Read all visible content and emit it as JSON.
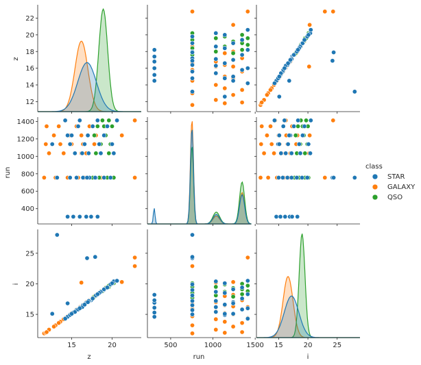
{
  "chart_data": {
    "type": "scatter",
    "kind": "pairplot",
    "variables": [
      "z",
      "run",
      "i"
    ],
    "diag_kind": "kde",
    "ranges": {
      "z": [
        10.8,
        23.6
      ],
      "run": [
        225,
        1450
      ],
      "i": [
        11.2,
        28.9
      ]
    },
    "ticks": {
      "z": [
        15,
        20
      ],
      "z_diag": [
        12,
        14,
        16,
        18,
        20,
        22
      ],
      "run": [
        500,
        1000,
        1500
      ],
      "run_diag": [
        400,
        600,
        800,
        1000,
        1200,
        1400
      ],
      "i": [
        15,
        20,
        25
      ],
      "i_diag": [
        15,
        20,
        25
      ]
    },
    "legend": {
      "title": "class",
      "placement": "right",
      "entries": [
        {
          "label": "STAR",
          "color": "#1f77b4"
        },
        {
          "label": "GALAXY",
          "color": "#ff7f0e"
        },
        {
          "label": "QSO",
          "color": "#2ca02c"
        }
      ]
    },
    "series": [
      {
        "name": "STAR",
        "color": "#1f77b4",
        "kde": {
          "z": {
            "mean": 16.9,
            "sd": 1.15
          },
          "run": {
            "modes": [
              {
                "mu": 752,
                "sd": 18,
                "w": 0.55
              },
              {
                "mu": 1040,
                "sd": 40,
                "w": 0.12
              },
              {
                "mu": 1345,
                "sd": 30,
                "w": 0.28
              },
              {
                "mu": 305,
                "sd": 10,
                "w": 0.05
              }
            ]
          },
          "i": {
            "mean": 17.2,
            "sd": 1.25
          }
        },
        "points": [
          {
            "z": 14.5,
            "run": 308,
            "i": 14.6
          },
          {
            "z": 15.2,
            "run": 308,
            "i": 15.3
          },
          {
            "z": 16.0,
            "run": 308,
            "i": 16.1
          },
          {
            "z": 16.8,
            "run": 308,
            "i": 16.9
          },
          {
            "z": 17.4,
            "run": 308,
            "i": 17.3
          },
          {
            "z": 18.2,
            "run": 308,
            "i": 18.2
          },
          {
            "z": 14.8,
            "run": 756,
            "i": 15.0
          },
          {
            "z": 15.6,
            "run": 756,
            "i": 15.7
          },
          {
            "z": 16.4,
            "run": 756,
            "i": 16.5
          },
          {
            "z": 17.2,
            "run": 756,
            "i": 17.2
          },
          {
            "z": 18.0,
            "run": 756,
            "i": 18.1
          },
          {
            "z": 19.0,
            "run": 756,
            "i": 19.0
          },
          {
            "z": 19.8,
            "run": 756,
            "i": 19.9
          },
          {
            "z": 16.9,
            "run": 756,
            "i": 24.2
          },
          {
            "z": 13.2,
            "run": 756,
            "i": 28.0
          },
          {
            "z": 17.9,
            "run": 756,
            "i": 24.4
          },
          {
            "z": 15.4,
            "run": 1035,
            "i": 15.4
          },
          {
            "z": 16.3,
            "run": 1035,
            "i": 16.2
          },
          {
            "z": 17.1,
            "run": 1035,
            "i": 17.2
          },
          {
            "z": 18.6,
            "run": 1035,
            "i": 18.7
          },
          {
            "z": 20.2,
            "run": 1035,
            "i": 20.4
          },
          {
            "z": 14.8,
            "run": 1140,
            "i": 14.9
          },
          {
            "z": 16.6,
            "run": 1140,
            "i": 16.6
          },
          {
            "z": 18.4,
            "run": 1140,
            "i": 18.5
          },
          {
            "z": 20.0,
            "run": 1140,
            "i": 20.1
          },
          {
            "z": 15.0,
            "run": 1240,
            "i": 15.1
          },
          {
            "z": 17.0,
            "run": 1240,
            "i": 17.0
          },
          {
            "z": 19.0,
            "run": 1240,
            "i": 19.1
          },
          {
            "z": 15.8,
            "run": 1345,
            "i": 15.8
          },
          {
            "z": 17.6,
            "run": 1345,
            "i": 17.6
          },
          {
            "z": 19.4,
            "run": 1345,
            "i": 19.4
          },
          {
            "z": 14.2,
            "run": 1412,
            "i": 14.3
          },
          {
            "z": 16.0,
            "run": 1412,
            "i": 16.0
          },
          {
            "z": 18.2,
            "run": 1412,
            "i": 18.3
          },
          {
            "z": 20.6,
            "run": 1412,
            "i": 20.5
          },
          {
            "z": 12.6,
            "run": 1140,
            "i": 15.1
          },
          {
            "z": 14.5,
            "run": 1240,
            "i": 16.8
          }
        ]
      },
      {
        "name": "GALAXY",
        "color": "#ff7f0e",
        "kde": {
          "z": {
            "mean": 16.2,
            "sd": 0.8
          },
          "run": {
            "modes": [
              {
                "mu": 752,
                "sd": 18,
                "w": 0.6
              },
              {
                "mu": 1040,
                "sd": 40,
                "w": 0.1
              },
              {
                "mu": 1345,
                "sd": 30,
                "w": 0.3
              }
            ]
          },
          "i": {
            "mean": 16.6,
            "sd": 0.85
          }
        },
        "points": [
          {
            "z": 11.6,
            "run": 756,
            "i": 11.9
          },
          {
            "z": 13.0,
            "run": 756,
            "i": 13.2
          },
          {
            "z": 14.5,
            "run": 756,
            "i": 14.7
          },
          {
            "z": 15.8,
            "run": 756,
            "i": 15.9
          },
          {
            "z": 16.6,
            "run": 756,
            "i": 16.7
          },
          {
            "z": 17.6,
            "run": 756,
            "i": 17.8
          },
          {
            "z": 18.6,
            "run": 756,
            "i": 18.8
          },
          {
            "z": 22.8,
            "run": 756,
            "i": 22.9
          },
          {
            "z": 12.2,
            "run": 1035,
            "i": 12.5
          },
          {
            "z": 14.0,
            "run": 1035,
            "i": 14.2
          },
          {
            "z": 15.4,
            "run": 1035,
            "i": 15.5
          },
          {
            "z": 16.8,
            "run": 1035,
            "i": 17.0
          },
          {
            "z": 11.8,
            "run": 1140,
            "i": 12.0
          },
          {
            "z": 13.6,
            "run": 1140,
            "i": 13.8
          },
          {
            "z": 15.0,
            "run": 1140,
            "i": 15.2
          },
          {
            "z": 16.4,
            "run": 1140,
            "i": 16.5
          },
          {
            "z": 17.8,
            "run": 1140,
            "i": 18.0
          },
          {
            "z": 12.8,
            "run": 1240,
            "i": 13.0
          },
          {
            "z": 14.8,
            "run": 1240,
            "i": 15.0
          },
          {
            "z": 16.2,
            "run": 1240,
            "i": 16.3
          },
          {
            "z": 18.0,
            "run": 1240,
            "i": 18.2
          },
          {
            "z": 11.9,
            "run": 1345,
            "i": 12.1
          },
          {
            "z": 13.4,
            "run": 1345,
            "i": 13.6
          },
          {
            "z": 15.6,
            "run": 1345,
            "i": 15.8
          },
          {
            "z": 17.2,
            "run": 1345,
            "i": 17.3
          },
          {
            "z": 19.2,
            "run": 1345,
            "i": 19.4
          },
          {
            "z": 14.2,
            "run": 1412,
            "i": 14.4
          },
          {
            "z": 16.0,
            "run": 1412,
            "i": 16.2
          },
          {
            "z": 22.8,
            "run": 1412,
            "i": 24.3
          },
          {
            "z": 16.2,
            "run": 1035,
            "i": 20.2
          },
          {
            "z": 21.2,
            "run": 1240,
            "i": 20.3
          }
        ]
      },
      {
        "name": "QSO",
        "color": "#2ca02c",
        "kde": {
          "z": {
            "mean": 18.9,
            "sd": 0.55
          },
          "run": {
            "modes": [
              {
                "mu": 752,
                "sd": 18,
                "w": 0.45
              },
              {
                "mu": 1040,
                "sd": 40,
                "w": 0.15
              },
              {
                "mu": 1345,
                "sd": 30,
                "w": 0.4
              }
            ]
          },
          "i": {
            "mean": 19.0,
            "sd": 0.5
          }
        },
        "points": [
          {
            "z": 17.6,
            "run": 756,
            "i": 17.7
          },
          {
            "z": 18.4,
            "run": 756,
            "i": 18.5
          },
          {
            "z": 19.4,
            "run": 756,
            "i": 19.5
          },
          {
            "z": 20.2,
            "run": 756,
            "i": 20.1
          },
          {
            "z": 18.0,
            "run": 1035,
            "i": 18.1
          },
          {
            "z": 19.6,
            "run": 1035,
            "i": 19.5
          },
          {
            "z": 18.6,
            "run": 1140,
            "i": 18.7
          },
          {
            "z": 19.8,
            "run": 1140,
            "i": 19.9
          },
          {
            "z": 17.8,
            "run": 1240,
            "i": 17.9
          },
          {
            "z": 19.2,
            "run": 1240,
            "i": 19.3
          },
          {
            "z": 18.2,
            "run": 1345,
            "i": 18.3
          },
          {
            "z": 19.0,
            "run": 1345,
            "i": 19.1
          },
          {
            "z": 20.0,
            "run": 1345,
            "i": 20.0
          },
          {
            "z": 18.8,
            "run": 1412,
            "i": 18.8
          },
          {
            "z": 19.6,
            "run": 1412,
            "i": 19.7
          }
        ]
      }
    ]
  }
}
